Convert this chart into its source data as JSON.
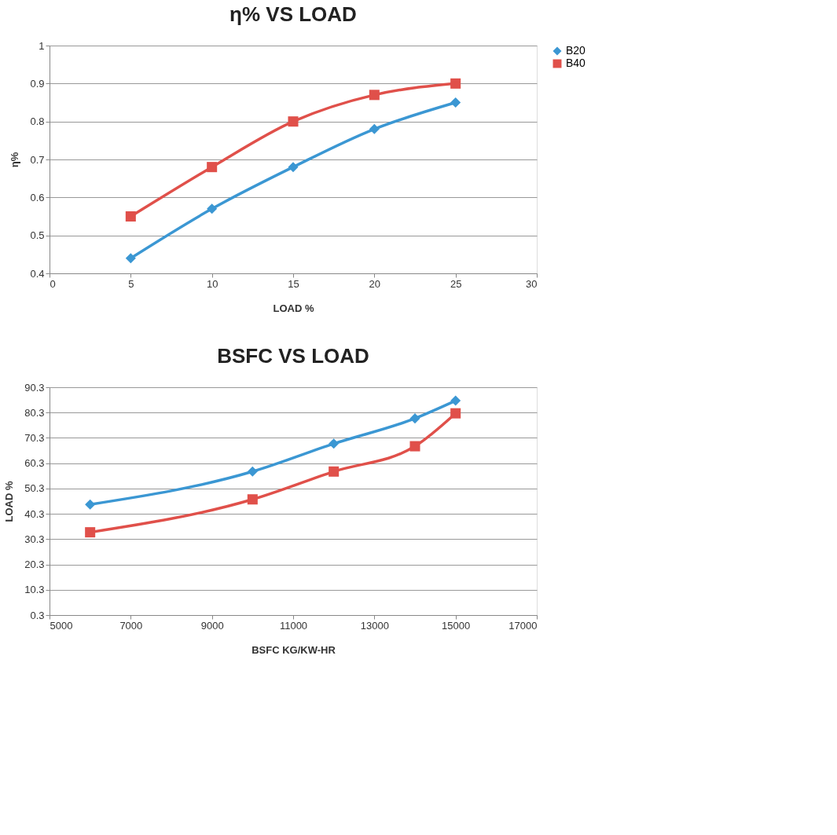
{
  "chart_data": [
    {
      "type": "line",
      "title": "η% VS LOAD",
      "xlabel": "LOAD %",
      "ylabel": "η%",
      "x": [
        5,
        10,
        15,
        20,
        25
      ],
      "xlim": [
        0,
        30
      ],
      "xticks": [
        0,
        5,
        10,
        15,
        20,
        25,
        30
      ],
      "ylim": [
        0.4,
        1
      ],
      "yticks": [
        0.4,
        0.5,
        0.6,
        0.7,
        0.8,
        0.9,
        1
      ],
      "grid": "y",
      "legend": "right",
      "line_style": "solid",
      "series": [
        {
          "name": "B20",
          "color": "#3b97d3",
          "marker": "diamond",
          "values": [
            0.44,
            0.57,
            0.68,
            0.78,
            0.85
          ]
        },
        {
          "name": "B40",
          "color": "#e0504a",
          "marker": "square",
          "values": [
            0.55,
            0.68,
            0.8,
            0.87,
            0.9
          ]
        }
      ]
    },
    {
      "type": "line",
      "title": "BSFC VS LOAD",
      "xlabel": "BSFC KG/KW-HR",
      "ylabel": "LOAD %",
      "x": [
        6000,
        10000,
        12000,
        14000,
        15000
      ],
      "xlim": [
        5000,
        17000
      ],
      "xticks": [
        5000,
        7000,
        9000,
        11000,
        13000,
        15000,
        17000
      ],
      "ylim": [
        0.3,
        90.3
      ],
      "yticks": [
        0.3,
        10.3,
        20.3,
        30.3,
        40.3,
        50.3,
        60.3,
        70.3,
        80.3,
        90.3
      ],
      "grid": "y",
      "legend": "right",
      "line_style": "solid",
      "series": [
        {
          "name": "B20",
          "color": "#3b97d3",
          "marker": "diamond",
          "values": [
            44,
            57,
            68,
            78,
            85
          ]
        },
        {
          "name": "B40",
          "color": "#e0504a",
          "marker": "square",
          "values": [
            33,
            46,
            57,
            67,
            80
          ]
        }
      ]
    }
  ]
}
